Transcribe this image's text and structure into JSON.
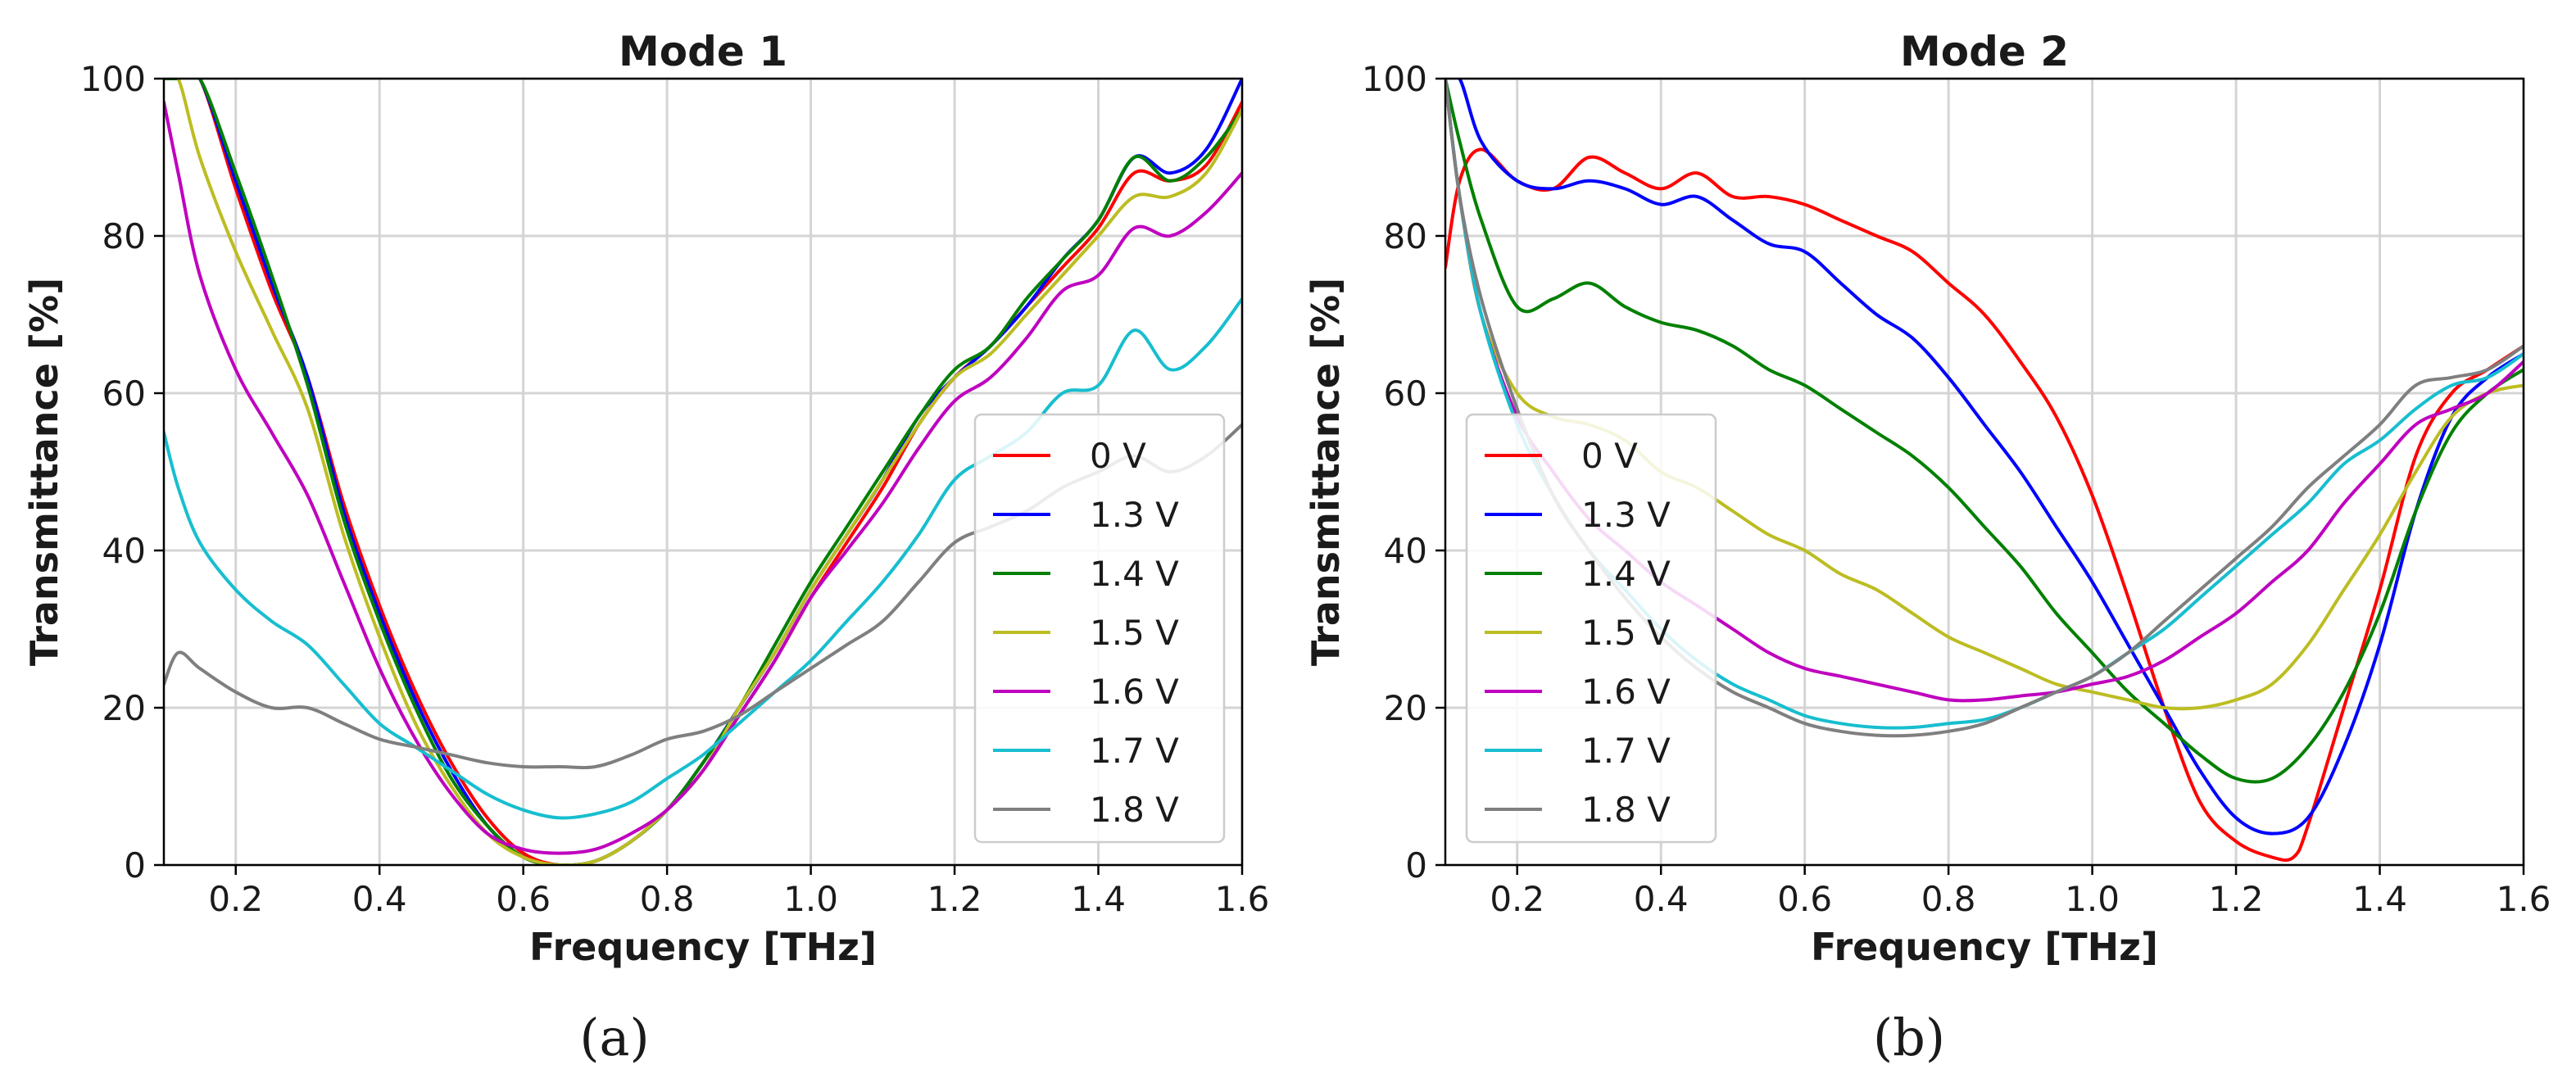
{
  "chart_data": [
    {
      "type": "line",
      "title": "Mode 1",
      "xlabel": "Frequency [THz]",
      "ylabel": "Transmittance [%]",
      "xlim": [
        0.1,
        1.6
      ],
      "ylim": [
        0,
        100
      ],
      "xticks": [
        "0.2",
        "0.4",
        "0.6",
        "0.8",
        "1.0",
        "1.2",
        "1.4",
        "1.6"
      ],
      "yticks": [
        "0",
        "20",
        "40",
        "60",
        "80",
        "100"
      ],
      "grid": true,
      "legend_position": "bottom-right",
      "panel_label": "(a)",
      "series": [
        {
          "name": "0 V",
          "color": "#ff0000",
          "x": [
            0.1,
            0.12,
            0.15,
            0.2,
            0.25,
            0.3,
            0.35,
            0.4,
            0.45,
            0.5,
            0.55,
            0.6,
            0.65,
            0.7,
            0.75,
            0.8,
            0.85,
            0.9,
            0.95,
            1.0,
            1.05,
            1.1,
            1.15,
            1.2,
            1.25,
            1.3,
            1.35,
            1.4,
            1.45,
            1.5,
            1.55,
            1.6
          ],
          "y": [
            100,
            100,
            100,
            86,
            73,
            62,
            46,
            33,
            22,
            13,
            6,
            1.5,
            0,
            0.5,
            3,
            7,
            12,
            19,
            26,
            34,
            41,
            48,
            56,
            62,
            66,
            71,
            76,
            81,
            88,
            87,
            89,
            97
          ]
        },
        {
          "name": "1.3 V",
          "color": "#0000ff",
          "x": [
            0.1,
            0.12,
            0.15,
            0.2,
            0.25,
            0.3,
            0.35,
            0.4,
            0.45,
            0.5,
            0.55,
            0.6,
            0.65,
            0.7,
            0.75,
            0.8,
            0.85,
            0.9,
            0.95,
            1.0,
            1.05,
            1.1,
            1.15,
            1.2,
            1.25,
            1.3,
            1.35,
            1.4,
            1.45,
            1.5,
            1.55,
            1.6
          ],
          "y": [
            100,
            100,
            100,
            87,
            74,
            62,
            45,
            32,
            21,
            12,
            5,
            1,
            0,
            0.5,
            3,
            7,
            13,
            20,
            27,
            35,
            42,
            49,
            57,
            62,
            66,
            71,
            77,
            82,
            90,
            88,
            91,
            100
          ]
        },
        {
          "name": "1.4 V",
          "color": "#008000",
          "x": [
            0.1,
            0.12,
            0.15,
            0.2,
            0.25,
            0.3,
            0.35,
            0.4,
            0.45,
            0.5,
            0.55,
            0.6,
            0.65,
            0.7,
            0.75,
            0.8,
            0.85,
            0.9,
            0.95,
            1.0,
            1.05,
            1.1,
            1.15,
            1.2,
            1.25,
            1.3,
            1.35,
            1.4,
            1.45,
            1.5,
            1.55,
            1.6
          ],
          "y": [
            100,
            100,
            100,
            88,
            75,
            61,
            44,
            31,
            20,
            11,
            5,
            1,
            0,
            0.5,
            3,
            7,
            13,
            20,
            28,
            36,
            43,
            50,
            57,
            63,
            66,
            72,
            77,
            82,
            90,
            87,
            90,
            96
          ]
        },
        {
          "name": "1.5 V",
          "color": "#bcbd22",
          "x": [
            0.1,
            0.12,
            0.15,
            0.2,
            0.25,
            0.3,
            0.35,
            0.4,
            0.45,
            0.5,
            0.55,
            0.6,
            0.65,
            0.7,
            0.75,
            0.8,
            0.85,
            0.9,
            0.95,
            1.0,
            1.05,
            1.1,
            1.15,
            1.2,
            1.25,
            1.3,
            1.35,
            1.4,
            1.45,
            1.5,
            1.55,
            1.6
          ],
          "y": [
            100,
            100,
            90,
            78,
            68,
            58,
            42,
            29,
            18,
            10,
            4,
            1,
            0,
            0.5,
            3,
            7,
            12,
            20,
            27,
            35,
            42,
            49,
            56,
            62,
            65,
            70,
            75,
            80,
            85,
            85,
            88,
            96
          ]
        },
        {
          "name": "1.6 V",
          "color": "#bf00bf",
          "x": [
            0.1,
            0.12,
            0.15,
            0.2,
            0.25,
            0.3,
            0.35,
            0.4,
            0.45,
            0.5,
            0.55,
            0.6,
            0.65,
            0.7,
            0.75,
            0.8,
            0.85,
            0.9,
            0.95,
            1.0,
            1.05,
            1.1,
            1.15,
            1.2,
            1.25,
            1.3,
            1.35,
            1.4,
            1.45,
            1.5,
            1.55,
            1.6
          ],
          "y": [
            97,
            88,
            75,
            63,
            55,
            47,
            36,
            25,
            16,
            9,
            4,
            2,
            1.5,
            2,
            4,
            7,
            12,
            19,
            26,
            34,
            40,
            46,
            53,
            59,
            62,
            67,
            73,
            75,
            81,
            80,
            83,
            88
          ]
        },
        {
          "name": "1.7 V",
          "color": "#17becf",
          "x": [
            0.1,
            0.12,
            0.15,
            0.2,
            0.25,
            0.3,
            0.35,
            0.4,
            0.45,
            0.5,
            0.55,
            0.6,
            0.65,
            0.7,
            0.75,
            0.8,
            0.85,
            0.9,
            0.95,
            1.0,
            1.05,
            1.1,
            1.15,
            1.2,
            1.25,
            1.3,
            1.35,
            1.4,
            1.45,
            1.5,
            1.55,
            1.6
          ],
          "y": [
            55,
            48,
            41,
            35,
            31,
            28,
            23,
            18,
            15,
            12,
            9,
            7,
            6,
            6.5,
            8,
            11,
            14,
            18,
            22,
            26,
            31,
            36,
            42,
            49,
            52,
            55,
            60,
            61,
            68,
            63,
            66,
            72
          ]
        },
        {
          "name": "1.8 V",
          "color": "#7f7f7f",
          "x": [
            0.1,
            0.12,
            0.15,
            0.2,
            0.25,
            0.3,
            0.35,
            0.4,
            0.45,
            0.5,
            0.55,
            0.6,
            0.65,
            0.7,
            0.75,
            0.8,
            0.85,
            0.9,
            0.95,
            1.0,
            1.05,
            1.1,
            1.15,
            1.2,
            1.25,
            1.3,
            1.35,
            1.4,
            1.45,
            1.5,
            1.55,
            1.6
          ],
          "y": [
            23,
            27,
            25,
            22,
            20,
            20,
            18,
            16,
            15,
            14,
            13,
            12.5,
            12.5,
            12.5,
            14,
            16,
            17,
            19,
            22,
            25,
            28,
            31,
            36,
            41,
            43,
            45,
            48,
            50,
            52,
            50,
            52,
            56
          ]
        }
      ]
    },
    {
      "type": "line",
      "title": "Mode 2",
      "xlabel": "Frequency [THz]",
      "ylabel": "Transmittance [%]",
      "xlim": [
        0.1,
        1.6
      ],
      "ylim": [
        0,
        100
      ],
      "xticks": [
        "0.2",
        "0.4",
        "0.6",
        "0.8",
        "1.0",
        "1.2",
        "1.4",
        "1.6"
      ],
      "yticks": [
        "0",
        "20",
        "40",
        "60",
        "80",
        "100"
      ],
      "grid": true,
      "legend_position": "center-left",
      "panel_label": "(b)",
      "series": [
        {
          "name": "0 V",
          "color": "#ff0000",
          "x": [
            0.1,
            0.12,
            0.15,
            0.2,
            0.25,
            0.3,
            0.35,
            0.4,
            0.45,
            0.5,
            0.55,
            0.6,
            0.65,
            0.7,
            0.75,
            0.8,
            0.85,
            0.9,
            0.95,
            1.0,
            1.05,
            1.1,
            1.15,
            1.2,
            1.25,
            1.28,
            1.3,
            1.35,
            1.4,
            1.45,
            1.5,
            1.55,
            1.6
          ],
          "y": [
            76,
            87,
            91,
            87,
            86,
            90,
            88,
            86,
            88,
            85,
            85,
            84,
            82,
            80,
            78,
            74,
            70,
            64,
            57,
            47,
            34,
            20,
            8,
            3,
            1,
            1,
            5,
            20,
            35,
            52,
            60,
            63,
            66
          ]
        },
        {
          "name": "1.3 V",
          "color": "#0000ff",
          "x": [
            0.1,
            0.12,
            0.15,
            0.2,
            0.25,
            0.3,
            0.35,
            0.4,
            0.45,
            0.5,
            0.55,
            0.6,
            0.65,
            0.7,
            0.75,
            0.8,
            0.85,
            0.9,
            0.95,
            1.0,
            1.05,
            1.1,
            1.15,
            1.2,
            1.25,
            1.3,
            1.35,
            1.4,
            1.45,
            1.5,
            1.55,
            1.6
          ],
          "y": [
            100,
            100,
            92,
            87,
            86,
            87,
            86,
            84,
            85,
            82,
            79,
            78,
            74,
            70,
            67,
            62,
            56,
            50,
            43,
            36,
            28,
            20,
            12,
            6,
            4,
            6,
            15,
            28,
            45,
            57,
            62,
            65
          ]
        },
        {
          "name": "1.4 V",
          "color": "#008000",
          "x": [
            0.1,
            0.12,
            0.15,
            0.2,
            0.25,
            0.3,
            0.35,
            0.4,
            0.45,
            0.5,
            0.55,
            0.6,
            0.65,
            0.7,
            0.75,
            0.8,
            0.85,
            0.9,
            0.95,
            1.0,
            1.05,
            1.1,
            1.15,
            1.2,
            1.25,
            1.3,
            1.35,
            1.4,
            1.45,
            1.5,
            1.55,
            1.6
          ],
          "y": [
            100,
            92,
            82,
            71,
            72,
            74,
            71,
            69,
            68,
            66,
            63,
            61,
            58,
            55,
            52,
            48,
            43,
            38,
            32,
            27,
            22,
            18,
            14,
            11,
            11,
            15,
            22,
            32,
            45,
            55,
            60,
            63
          ]
        },
        {
          "name": "1.5 V",
          "color": "#bcbd22",
          "x": [
            0.1,
            0.12,
            0.15,
            0.2,
            0.25,
            0.3,
            0.35,
            0.4,
            0.45,
            0.5,
            0.55,
            0.6,
            0.65,
            0.7,
            0.75,
            0.8,
            0.85,
            0.9,
            0.95,
            1.0,
            1.05,
            1.1,
            1.15,
            1.2,
            1.25,
            1.3,
            1.35,
            1.4,
            1.45,
            1.5,
            1.55,
            1.6
          ],
          "y": [
            100,
            85,
            70,
            60,
            57,
            56,
            54,
            50,
            48,
            45,
            42,
            40,
            37,
            35,
            32,
            29,
            27,
            25,
            23,
            22,
            21,
            20,
            20,
            21,
            23,
            28,
            35,
            42,
            50,
            57,
            60,
            61
          ]
        },
        {
          "name": "1.6 V",
          "color": "#bf00bf",
          "x": [
            0.1,
            0.12,
            0.15,
            0.2,
            0.25,
            0.3,
            0.35,
            0.4,
            0.45,
            0.5,
            0.55,
            0.6,
            0.65,
            0.7,
            0.75,
            0.8,
            0.85,
            0.9,
            0.95,
            1.0,
            1.05,
            1.1,
            1.15,
            1.2,
            1.25,
            1.3,
            1.35,
            1.4,
            1.45,
            1.5,
            1.55,
            1.6
          ],
          "y": [
            100,
            85,
            70,
            57,
            50,
            44,
            40,
            36,
            33,
            30,
            27,
            25,
            24,
            23,
            22,
            21,
            21,
            21.5,
            22,
            23,
            24,
            26,
            29,
            32,
            36,
            40,
            46,
            51,
            56,
            58,
            60,
            64
          ]
        },
        {
          "name": "1.7 V",
          "color": "#17becf",
          "x": [
            0.1,
            0.12,
            0.15,
            0.2,
            0.25,
            0.3,
            0.35,
            0.4,
            0.45,
            0.5,
            0.55,
            0.6,
            0.65,
            0.7,
            0.75,
            0.8,
            0.85,
            0.9,
            0.95,
            1.0,
            1.05,
            1.1,
            1.15,
            1.2,
            1.25,
            1.3,
            1.35,
            1.4,
            1.45,
            1.5,
            1.55,
            1.6
          ],
          "y": [
            100,
            85,
            70,
            56,
            47,
            40,
            35,
            30,
            26,
            23,
            21,
            19,
            18,
            17.5,
            17.5,
            18,
            18.5,
            20,
            22,
            24,
            27,
            30,
            34,
            38,
            42,
            46,
            51,
            54,
            58,
            61,
            62,
            65
          ]
        },
        {
          "name": "1.8 V",
          "color": "#7f7f7f",
          "x": [
            0.1,
            0.12,
            0.15,
            0.2,
            0.25,
            0.3,
            0.35,
            0.4,
            0.45,
            0.5,
            0.55,
            0.6,
            0.65,
            0.7,
            0.75,
            0.8,
            0.85,
            0.9,
            0.95,
            1.0,
            1.05,
            1.1,
            1.15,
            1.2,
            1.25,
            1.3,
            1.35,
            1.4,
            1.45,
            1.5,
            1.55,
            1.6
          ],
          "y": [
            100,
            85,
            72,
            58,
            47,
            40,
            34,
            29,
            25,
            22,
            20,
            18,
            17,
            16.5,
            16.5,
            17,
            18,
            20,
            22,
            24,
            27,
            31,
            35,
            39,
            43,
            48,
            52,
            56,
            61,
            62,
            63,
            66
          ]
        }
      ]
    }
  ]
}
